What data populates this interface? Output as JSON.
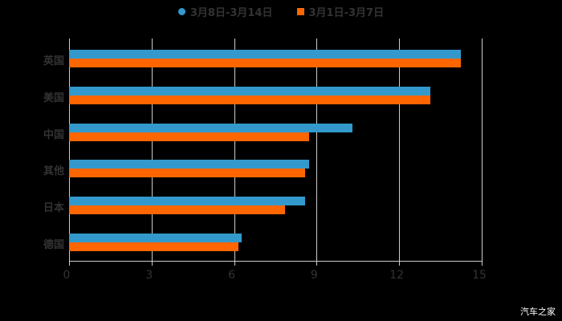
{
  "legend": [
    {
      "label": "3月8日-3月14日",
      "color": "#3399cc",
      "shape": "circle"
    },
    {
      "label": "3月1日-3月7日",
      "color": "#ff6600",
      "shape": "square"
    }
  ],
  "watermark": "汽车之家",
  "chart_data": {
    "type": "bar",
    "orientation": "horizontal",
    "title": "",
    "xlabel": "",
    "ylabel": "",
    "xlim": [
      0,
      15
    ],
    "x_ticks": [
      "0",
      "3",
      "6",
      "9",
      "12",
      "15"
    ],
    "grid": true,
    "legend_position": "top",
    "categories": [
      "英国",
      "美国",
      "中国",
      "其他",
      "日本",
      "德国"
    ],
    "series": [
      {
        "name": "3月8日-3月14日",
        "color": "#3399cc",
        "values": [
          14.24,
          13.13,
          10.3,
          8.73,
          8.58,
          6.27
        ]
      },
      {
        "name": "3月1日-3月7日",
        "color": "#ff6600",
        "values": [
          14.24,
          13.13,
          8.73,
          8.58,
          7.85,
          6.16
        ]
      }
    ]
  }
}
